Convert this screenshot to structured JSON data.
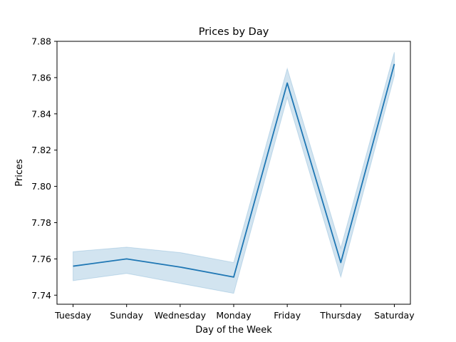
{
  "chart_data": {
    "type": "line",
    "title": "Prices by Day",
    "xlabel": "Day of the Week",
    "ylabel": "Prices",
    "categories": [
      "Tuesday",
      "Sunday",
      "Wednesday",
      "Monday",
      "Friday",
      "Thursday",
      "Saturday"
    ],
    "series": [
      {
        "values": [
          7.756,
          7.76,
          7.7555,
          7.75,
          7.857,
          7.758,
          7.8675
        ],
        "ci_lower": [
          7.748,
          7.752,
          7.7465,
          7.741,
          7.849,
          7.75,
          7.861
        ],
        "ci_upper": [
          7.764,
          7.7665,
          7.7635,
          7.758,
          7.865,
          7.766,
          7.874
        ]
      }
    ],
    "ylim": [
      7.735,
      7.88
    ],
    "yticks": [
      "7.74",
      "7.76",
      "7.78",
      "7.80",
      "7.82",
      "7.84",
      "7.86",
      "7.88"
    ],
    "grid": false,
    "colors": {
      "line": "#1f77b4",
      "band": "#1f77b4"
    }
  }
}
